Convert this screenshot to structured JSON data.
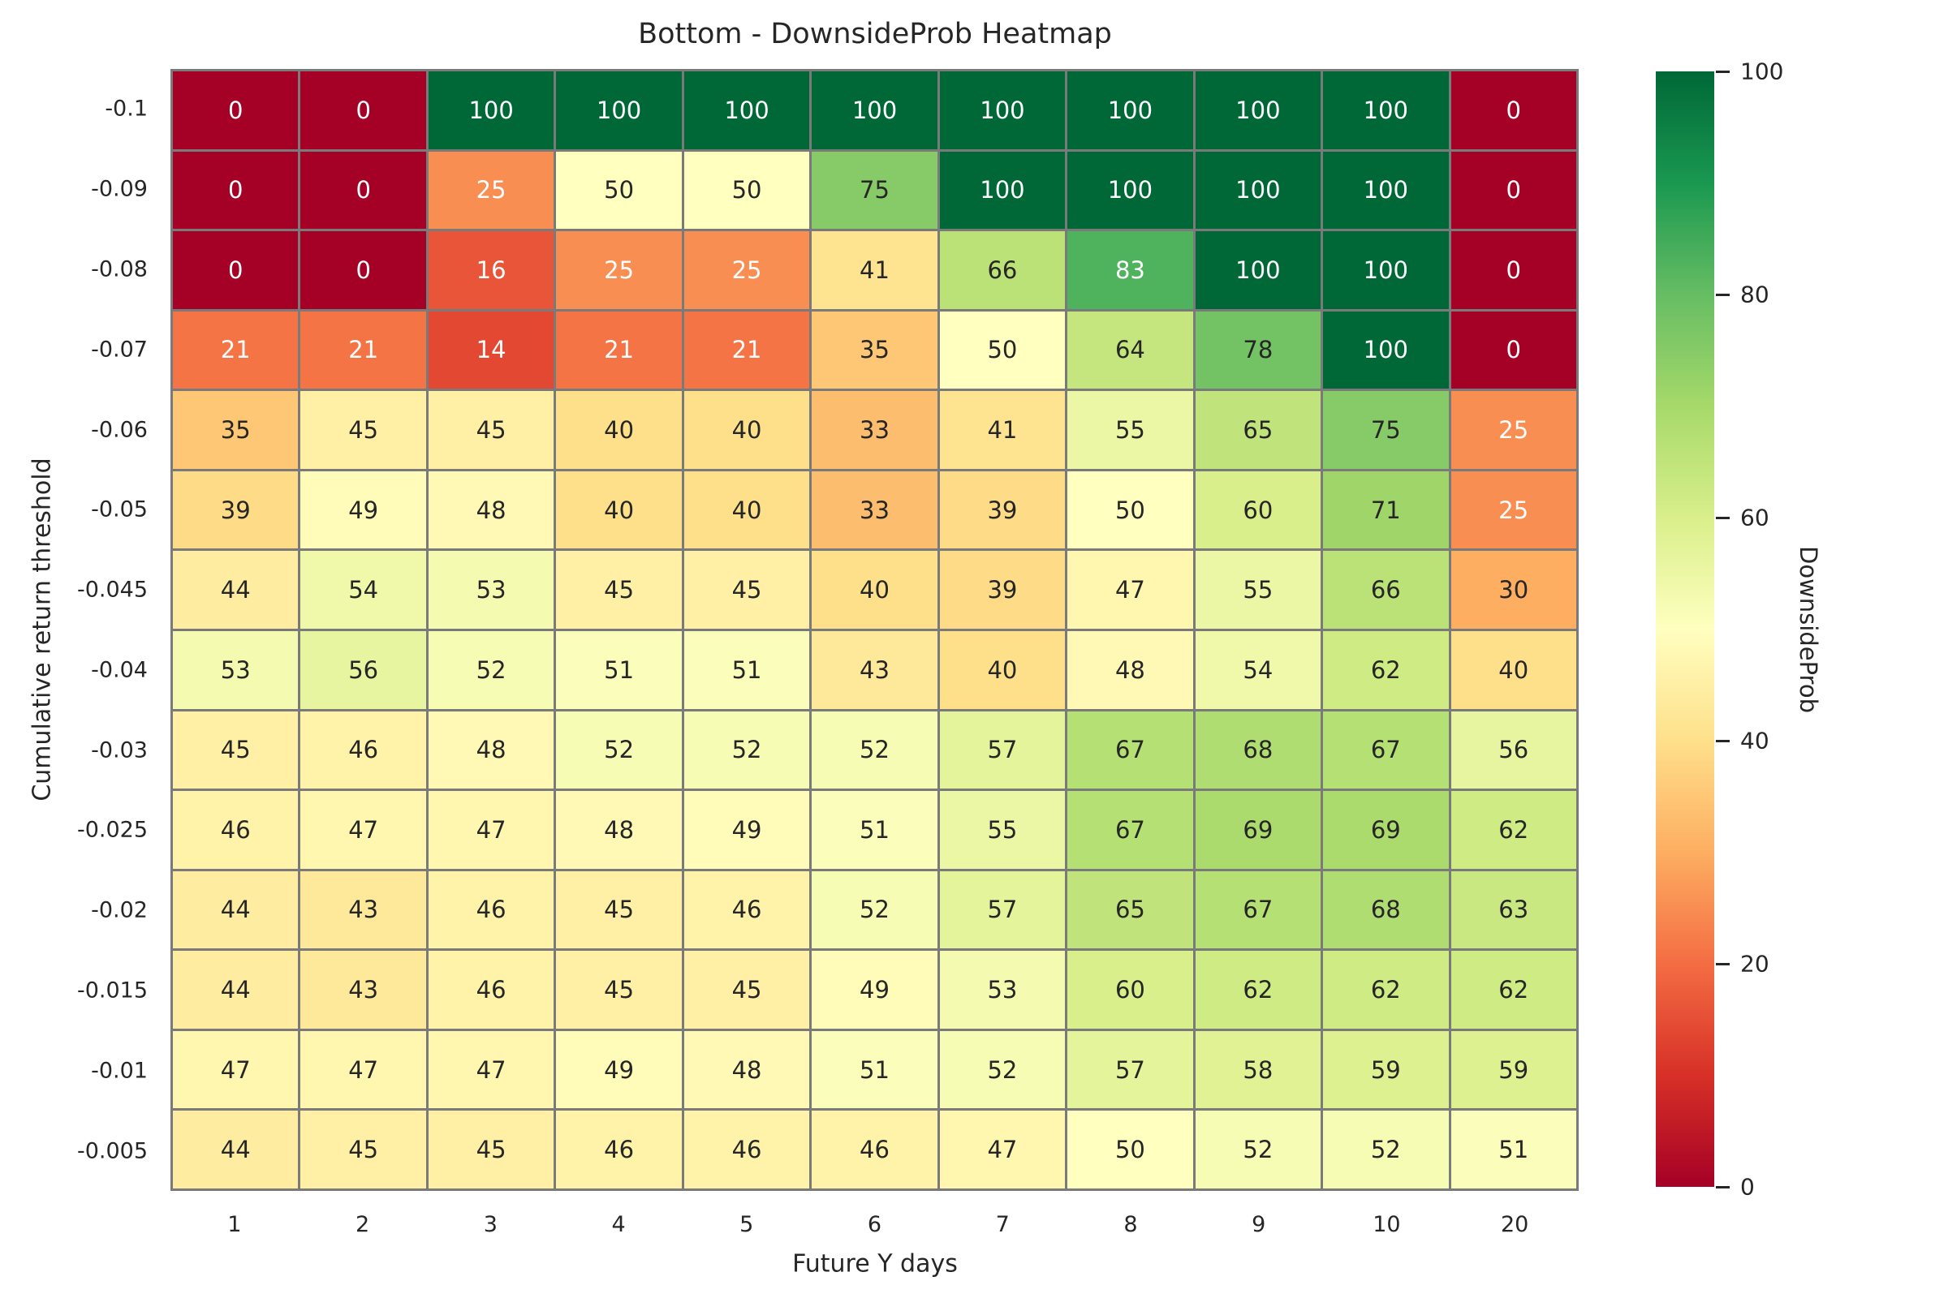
{
  "chart_data": {
    "type": "heatmap",
    "title": "Bottom - DownsideProb Heatmap",
    "xlabel": "Future Y days",
    "ylabel": "Cumulative return threshold",
    "x_labels": [
      "1",
      "2",
      "3",
      "4",
      "5",
      "6",
      "7",
      "8",
      "9",
      "10",
      "20"
    ],
    "y_labels": [
      "-0.1",
      "-0.09",
      "-0.08",
      "-0.07",
      "-0.06",
      "-0.05",
      "-0.045",
      "-0.04",
      "-0.03",
      "-0.025",
      "-0.02",
      "-0.015",
      "-0.01",
      "-0.005"
    ],
    "values": [
      [
        0,
        0,
        100,
        100,
        100,
        100,
        100,
        100,
        100,
        100,
        0
      ],
      [
        0,
        0,
        25,
        50,
        50,
        75,
        100,
        100,
        100,
        100,
        0
      ],
      [
        0,
        0,
        16,
        25,
        25,
        41,
        66,
        83,
        100,
        100,
        0
      ],
      [
        21,
        21,
        14,
        21,
        21,
        35,
        50,
        64,
        78,
        100,
        0
      ],
      [
        35,
        45,
        45,
        40,
        40,
        33,
        41,
        55,
        65,
        75,
        25
      ],
      [
        39,
        49,
        48,
        40,
        40,
        33,
        39,
        50,
        60,
        71,
        25
      ],
      [
        44,
        54,
        53,
        45,
        45,
        40,
        39,
        47,
        55,
        66,
        30
      ],
      [
        53,
        56,
        52,
        51,
        51,
        43,
        40,
        48,
        54,
        62,
        40
      ],
      [
        45,
        46,
        48,
        52,
        52,
        52,
        57,
        67,
        68,
        67,
        56
      ],
      [
        46,
        47,
        47,
        48,
        49,
        51,
        55,
        67,
        69,
        69,
        62
      ],
      [
        44,
        43,
        46,
        45,
        46,
        52,
        57,
        65,
        67,
        68,
        63
      ],
      [
        44,
        43,
        46,
        45,
        45,
        49,
        53,
        60,
        62,
        62,
        62
      ],
      [
        47,
        47,
        47,
        49,
        48,
        51,
        52,
        57,
        58,
        59,
        59
      ],
      [
        44,
        45,
        45,
        46,
        46,
        46,
        47,
        50,
        52,
        52,
        51
      ]
    ],
    "value_range": [
      0,
      100
    ],
    "colorbar": {
      "label": "DownsideProb",
      "ticks": [
        0,
        20,
        40,
        60,
        80,
        100
      ],
      "min": 0,
      "max": 100,
      "position": "right"
    },
    "colormap": {
      "name": "RdYlGn",
      "stops": [
        "#a50026",
        "#d73027",
        "#f46d43",
        "#fdae61",
        "#fee08b",
        "#ffffbf",
        "#d9ef8b",
        "#a6d96a",
        "#66bd63",
        "#1a9850",
        "#006837"
      ]
    },
    "colors": {
      "grid_line": "#7a7a7a",
      "annotation_dark": "#262626",
      "annotation_light": "#ffffff",
      "background": "#ffffff"
    },
    "grid": "cell-borders-on",
    "legend_position": "colorbar-right"
  }
}
